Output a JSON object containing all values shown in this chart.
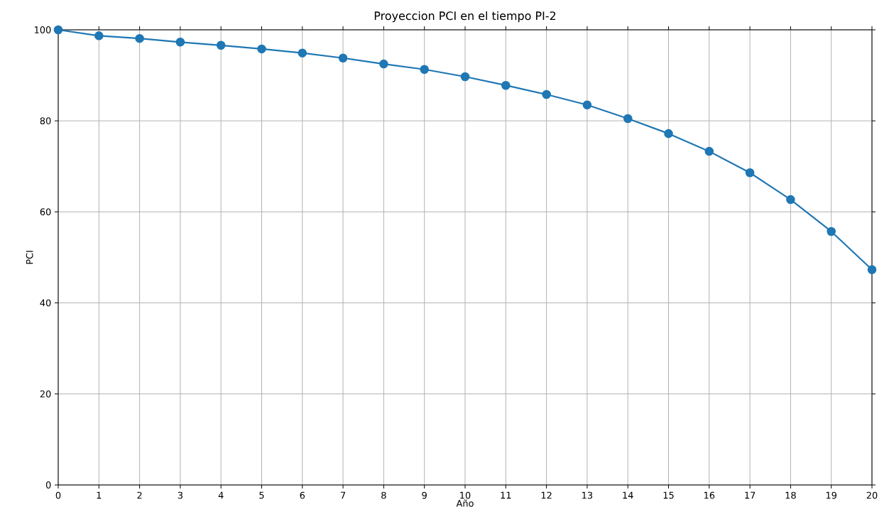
{
  "chart_data": {
    "type": "line",
    "title": "Proyeccion PCI en el tiempo PI-2",
    "xlabel": "Año",
    "ylabel": "PCI",
    "x": [
      0,
      1,
      2,
      3,
      4,
      5,
      6,
      7,
      8,
      9,
      10,
      11,
      12,
      13,
      14,
      15,
      16,
      17,
      18,
      19,
      20
    ],
    "series": [
      {
        "color": "#1f77b4",
        "values": [
          100,
          98.7,
          98.1,
          97.3,
          96.6,
          95.8,
          94.9,
          93.8,
          92.5,
          91.3,
          89.7,
          87.8,
          85.8,
          83.5,
          80.5,
          77.2,
          73.3,
          68.6,
          62.7,
          55.7,
          47.3
        ]
      }
    ],
    "xlim": [
      0,
      20
    ],
    "ylim": [
      0,
      100
    ],
    "xticks": [
      0,
      1,
      2,
      3,
      4,
      5,
      6,
      7,
      8,
      9,
      10,
      11,
      12,
      13,
      14,
      15,
      16,
      17,
      18,
      19,
      20
    ],
    "yticks": [
      0,
      20,
      40,
      60,
      80,
      100
    ],
    "grid": true,
    "marker": "circle",
    "line_style": "solid"
  }
}
